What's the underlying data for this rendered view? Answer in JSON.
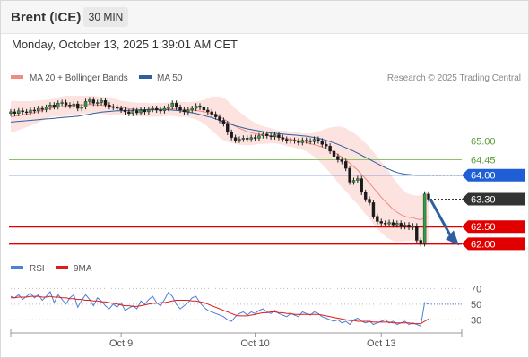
{
  "header": {
    "instrument": "Brent (ICE)",
    "timeframe": "30 MIN",
    "datetime": "Monday, October 13, 2025 1:39:01 AM CET"
  },
  "legend": {
    "ma20_label": "MA 20 + Bollinger Bands",
    "ma20_color": "#f28b82",
    "ma50_label": "MA 50",
    "ma50_color": "#2e5f9e",
    "rsi_label": "RSI",
    "rsi_color": "#4f7fd6",
    "ma9_label": "9MA",
    "ma9_color": "#e01b1b"
  },
  "copyright": "Research © 2025 Trading Central",
  "chart_data": [
    {
      "type": "candlestick",
      "title": "",
      "ylim": [
        61.8,
        66.5
      ],
      "levels": [
        {
          "value": 65.0,
          "label": "65.00",
          "kind": "resistance",
          "color": "#8cc06c",
          "text_color": "#5a9a36"
        },
        {
          "value": 64.45,
          "label": "64.45",
          "kind": "resistance",
          "color": "#8cc06c",
          "text_color": "#5a9a36"
        },
        {
          "value": 64.0,
          "label": "64.00",
          "kind": "pivot",
          "color": "#1f5fd6"
        },
        {
          "value": 63.3,
          "label": "63.30",
          "kind": "last_price",
          "color": "#333333"
        },
        {
          "value": 62.5,
          "label": "62.50",
          "kind": "support",
          "color": "#e00000"
        },
        {
          "value": 62.0,
          "label": "62.00",
          "kind": "support",
          "color": "#e00000"
        }
      ],
      "x_ticks": [
        {
          "index": 28,
          "label": "Oct 9"
        },
        {
          "index": 62,
          "label": "Oct 10"
        },
        {
          "index": 94,
          "label": "Oct 13"
        }
      ],
      "close": [
        65.85,
        65.8,
        65.88,
        65.85,
        65.83,
        65.9,
        65.88,
        65.95,
        65.92,
        65.98,
        66.05,
        66.0,
        66.1,
        66.12,
        66.05,
        66.02,
        66.08,
        65.95,
        66.0,
        66.15,
        66.2,
        66.1,
        66.12,
        66.18,
        66.05,
        66.0,
        65.98,
        65.95,
        65.9,
        65.85,
        65.8,
        65.88,
        65.82,
        65.9,
        65.85,
        65.92,
        65.95,
        65.9,
        65.88,
        65.95,
        66.0,
        66.1,
        65.98,
        65.9,
        65.85,
        65.9,
        65.95,
        66.02,
        65.98,
        65.9,
        65.85,
        65.78,
        65.7,
        65.6,
        65.5,
        65.25,
        65.1,
        65.02,
        65.05,
        65.08,
        65.05,
        65.1,
        65.08,
        65.15,
        65.2,
        65.15,
        65.12,
        65.18,
        65.1,
        65.05,
        65.0,
        65.02,
        65.0,
        64.95,
        65.02,
        65.0,
        64.98,
        65.05,
        65.0,
        64.9,
        64.85,
        64.7,
        64.55,
        64.45,
        64.4,
        64.2,
        63.8,
        63.85,
        63.9,
        63.5,
        63.3,
        63.2,
        62.8,
        62.65,
        62.6,
        62.58,
        62.62,
        62.55,
        62.6,
        62.5,
        62.55,
        62.48,
        62.52,
        62.1,
        62.0,
        63.45,
        63.3
      ],
      "ma20": [
        65.7,
        65.72,
        65.74,
        65.76,
        65.78,
        65.8,
        65.83,
        65.86,
        65.89,
        65.92,
        65.95,
        65.97,
        65.99,
        66.0,
        66.02,
        66.03,
        66.04,
        66.05,
        66.05,
        66.06,
        66.06,
        66.06,
        66.05,
        66.04,
        66.03,
        66.02,
        66.0,
        65.99,
        65.97,
        65.96,
        65.94,
        65.93,
        65.92,
        65.91,
        65.91,
        65.9,
        65.9,
        65.91,
        65.91,
        65.92,
        65.93,
        65.93,
        65.93,
        65.92,
        65.92,
        65.91,
        65.9,
        65.89,
        65.87,
        65.85,
        65.83,
        65.8,
        65.75,
        65.7,
        65.64,
        65.57,
        65.5,
        65.43,
        65.37,
        65.32,
        65.27,
        65.24,
        65.21,
        65.19,
        65.17,
        65.16,
        65.15,
        65.13,
        65.11,
        65.09,
        65.07,
        65.05,
        65.03,
        65.0,
        64.98,
        64.95,
        64.92,
        64.89,
        64.86,
        64.82,
        64.78,
        64.73,
        64.67,
        64.6,
        64.53,
        64.45,
        64.35,
        64.25,
        64.15,
        64.02,
        63.9,
        63.77,
        63.63,
        63.5,
        63.36,
        63.24,
        63.12,
        63.0,
        62.92,
        62.85,
        62.8,
        62.77,
        62.76,
        62.72,
        62.7,
        62.75,
        62.79
      ],
      "ma50": [
        65.55,
        65.56,
        65.57,
        65.58,
        65.59,
        65.6,
        65.61,
        65.62,
        65.63,
        65.64,
        65.65,
        65.66,
        65.67,
        65.68,
        65.69,
        65.7,
        65.71,
        65.72,
        65.74,
        65.76,
        65.78,
        65.8,
        65.82,
        65.84,
        65.85,
        65.86,
        65.87,
        65.88,
        65.88,
        65.89,
        65.89,
        65.9,
        65.9,
        65.91,
        65.91,
        65.92,
        65.92,
        65.92,
        65.92,
        65.92,
        65.91,
        65.9,
        65.89,
        65.88,
        65.86,
        65.84,
        65.82,
        65.8,
        65.77,
        65.74,
        65.71,
        65.68,
        65.64,
        65.6,
        65.56,
        65.52,
        65.48,
        65.44,
        65.41,
        65.38,
        65.35,
        65.33,
        65.31,
        65.29,
        65.27,
        65.25,
        65.23,
        65.22,
        65.21,
        65.2,
        65.19,
        65.18,
        65.17,
        65.16,
        65.15,
        65.14,
        65.12,
        65.1,
        65.08,
        65.05,
        65.02,
        64.98,
        64.94,
        64.9,
        64.85,
        64.8,
        64.75,
        64.7,
        64.64,
        64.58,
        64.52,
        64.46,
        64.4,
        64.34,
        64.28,
        64.22,
        64.17,
        64.12,
        64.08,
        64.05,
        64.03,
        64.02,
        64.01,
        64.0,
        64.0,
        64.0,
        64.0
      ],
      "bollinger_width": [
        0.45,
        0.45,
        0.42,
        0.4,
        0.38,
        0.36,
        0.34,
        0.32,
        0.3,
        0.28,
        0.26,
        0.26,
        0.28,
        0.3,
        0.3,
        0.28,
        0.28,
        0.27,
        0.26,
        0.26,
        0.26,
        0.26,
        0.25,
        0.25,
        0.25,
        0.25,
        0.24,
        0.22,
        0.2,
        0.2,
        0.2,
        0.2,
        0.2,
        0.2,
        0.2,
        0.2,
        0.2,
        0.2,
        0.2,
        0.2,
        0.2,
        0.2,
        0.22,
        0.22,
        0.22,
        0.22,
        0.24,
        0.26,
        0.3,
        0.35,
        0.42,
        0.5,
        0.55,
        0.6,
        0.62,
        0.6,
        0.56,
        0.52,
        0.48,
        0.44,
        0.4,
        0.36,
        0.32,
        0.28,
        0.26,
        0.24,
        0.22,
        0.2,
        0.2,
        0.2,
        0.22,
        0.22,
        0.22,
        0.24,
        0.24,
        0.26,
        0.3,
        0.35,
        0.42,
        0.5,
        0.58,
        0.66,
        0.74,
        0.82,
        0.88,
        0.92,
        0.95,
        0.98,
        1.0,
        1.02,
        1.04,
        1.05,
        1.05,
        1.05,
        1.04,
        1.02,
        0.98,
        0.92,
        0.85,
        0.78,
        0.72,
        0.68,
        0.66,
        0.68,
        0.72,
        0.74,
        0.74
      ]
    },
    {
      "type": "line",
      "title": "RSI",
      "ylim": [
        20,
        75
      ],
      "y_ticks": [
        70,
        50,
        30
      ],
      "rsi": [
        60,
        58,
        62,
        56,
        60,
        64,
        58,
        62,
        55,
        60,
        66,
        52,
        62,
        56,
        50,
        58,
        62,
        46,
        55,
        62,
        56,
        48,
        58,
        54,
        48,
        44,
        50,
        46,
        52,
        42,
        45,
        48,
        44,
        54,
        50,
        56,
        60,
        52,
        48,
        56,
        65,
        60,
        50,
        44,
        48,
        52,
        58,
        60,
        52,
        46,
        42,
        40,
        38,
        36,
        34,
        30,
        28,
        34,
        38,
        40,
        36,
        40,
        38,
        42,
        44,
        40,
        38,
        42,
        38,
        36,
        34,
        38,
        36,
        34,
        40,
        38,
        36,
        40,
        38,
        34,
        32,
        30,
        28,
        30,
        26,
        28,
        24,
        30,
        32,
        28,
        26,
        28,
        24,
        26,
        28,
        30,
        26,
        28,
        24,
        26,
        28,
        24,
        26,
        24,
        22,
        52,
        50
      ],
      "ma9": [
        58,
        58,
        59,
        59,
        59,
        60,
        60,
        60,
        59,
        59,
        60,
        59,
        59,
        58,
        58,
        57,
        57,
        56,
        56,
        55,
        55,
        54,
        54,
        53,
        53,
        52,
        51,
        50,
        49,
        48,
        48,
        47,
        47,
        48,
        49,
        50,
        51,
        51,
        52,
        52,
        53,
        54,
        55,
        55,
        55,
        55,
        54,
        54,
        53,
        52,
        50,
        48,
        46,
        44,
        42,
        40,
        38,
        36,
        35,
        35,
        35,
        36,
        37,
        38,
        39,
        39,
        40,
        40,
        39,
        39,
        38,
        38,
        37,
        37,
        37,
        37,
        37,
        37,
        37,
        36,
        35,
        34,
        33,
        32,
        31,
        30,
        29,
        29,
        28,
        28,
        28,
        28,
        27,
        27,
        27,
        27,
        27,
        26,
        26,
        26,
        26,
        26,
        25,
        25,
        25,
        28,
        31
      ]
    }
  ]
}
